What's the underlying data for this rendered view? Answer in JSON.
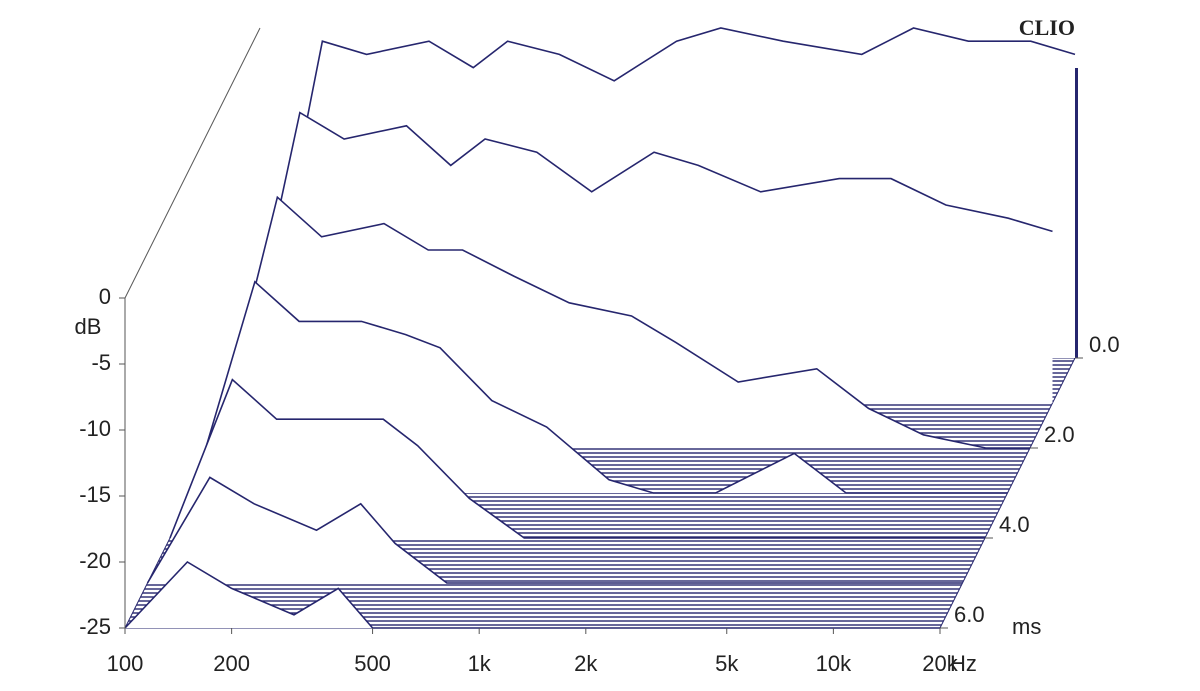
{
  "chart_data": {
    "type": "waterfall",
    "brand": "CLIO",
    "y_label": "dB",
    "x_unit": "Hz",
    "z_unit": "ms",
    "color": "#26266e",
    "x": [
      100,
      150,
      200,
      300,
      400,
      500,
      700,
      1000,
      1500,
      2000,
      3000,
      5000,
      7000,
      10000,
      15000,
      20000
    ],
    "slices": [
      {
        "time": 0,
        "values": [
          -25,
          -1,
          -2,
          -1,
          -3,
          -1,
          -2,
          -4,
          -1,
          0,
          -1,
          -2,
          0,
          -1,
          -1,
          -2
        ]
      },
      {
        "time": 1,
        "values": [
          -25,
          -3,
          -5,
          -4,
          -7,
          -5,
          -6,
          -9,
          -6,
          -7,
          -9,
          -8,
          -8,
          -10,
          -11,
          -12
        ]
      },
      {
        "time": 2,
        "values": [
          -25,
          -6,
          -9,
          -8,
          -10,
          -10,
          -12,
          -14,
          -15,
          -17,
          -20,
          -19,
          -22,
          -24,
          -25,
          -25
        ]
      },
      {
        "time": 3,
        "values": [
          -25,
          -9,
          -12,
          -12,
          -13,
          -14,
          -18,
          -20,
          -24,
          -25,
          -25,
          -22,
          -25,
          -25,
          -25,
          -25
        ]
      },
      {
        "time": 4,
        "values": [
          -25,
          -13,
          -16,
          -16,
          -16,
          -18,
          -22,
          -25,
          -25,
          -25,
          -25,
          -25,
          -25,
          -25,
          -25,
          -25
        ]
      },
      {
        "time": 5,
        "values": [
          -25,
          -17,
          -19,
          -21,
          -19,
          -22,
          -25,
          -25,
          -25,
          -25,
          -25,
          -25,
          -25,
          -25,
          -25,
          -25
        ]
      },
      {
        "time": 6,
        "values": [
          -25,
          -20,
          -22,
          -24,
          -22,
          -25,
          -25,
          -25,
          -25,
          -25,
          -25,
          -25,
          -25,
          -25,
          -25,
          -25
        ]
      }
    ],
    "xlim": [
      100,
      20000
    ],
    "ylim": [
      -25,
      0
    ],
    "zlim": [
      0,
      6
    ],
    "log_x": true,
    "xticks": [
      100,
      200,
      500,
      {
        "value": 1000,
        "label": "1k"
      },
      {
        "value": 2000,
        "label": "2k"
      },
      {
        "value": 5000,
        "label": "5k"
      },
      {
        "value": 10000,
        "label": "10k"
      },
      {
        "value": 20000,
        "label": "20k"
      }
    ],
    "yticks": [
      0,
      -5,
      -10,
      -15,
      -20,
      -25
    ],
    "zticks": [
      {
        "value": 0,
        "label": "0.0"
      },
      {
        "value": 2,
        "label": "2.0"
      },
      {
        "value": 4,
        "label": "4.0"
      },
      {
        "value": 6,
        "label": "6.0"
      }
    ]
  }
}
